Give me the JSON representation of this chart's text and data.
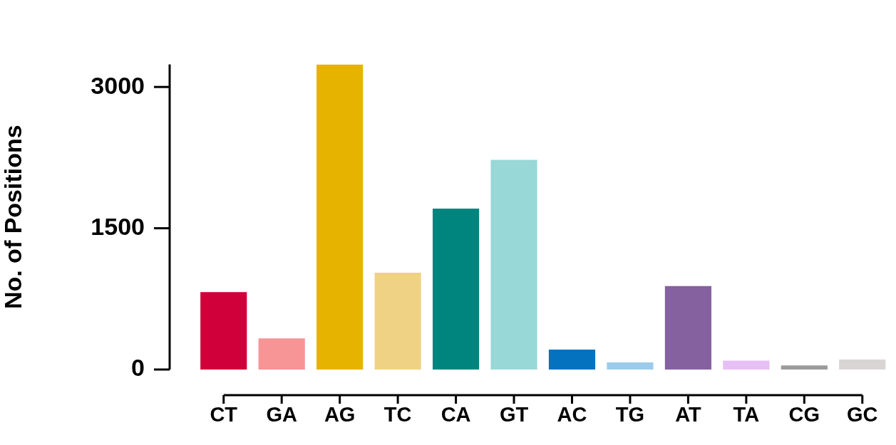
{
  "chart_data": {
    "type": "bar",
    "ylabel": "No. of Positions",
    "categories": [
      "CT",
      "GA",
      "AG",
      "TC",
      "CA",
      "GT",
      "AC",
      "TG",
      "AT",
      "TA",
      "CG",
      "GC"
    ],
    "values": [
      823,
      330,
      3240,
      1029,
      1709,
      2227,
      212,
      75,
      886,
      94,
      44,
      106
    ],
    "colors": [
      "#d0003a",
      "#f79496",
      "#e6b300",
      "#efd283",
      "#00857e",
      "#98d8d7",
      "#0572c0",
      "#9ccbeb",
      "#8561a0",
      "#e6bff5",
      "#9b9b9b",
      "#d9d5d5"
    ],
    "ylim": [
      0,
      3240
    ],
    "yticks": [
      0,
      1500,
      3000
    ],
    "grid": false,
    "legend": false
  }
}
